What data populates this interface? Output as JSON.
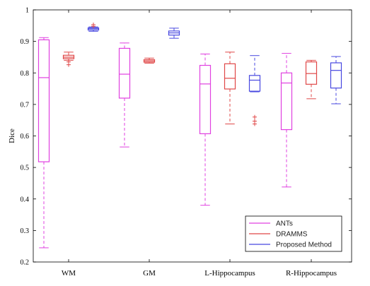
{
  "chart_data": {
    "type": "box",
    "ylabel": "Dice",
    "xlabel": "",
    "title": "",
    "ylim": [
      0.2,
      1.0
    ],
    "yticks": [
      0.2,
      0.3,
      0.4,
      0.5,
      0.6,
      0.7,
      0.8,
      0.9,
      1.0
    ],
    "ytick_labels": [
      "0.2",
      "0.3",
      "0.4",
      "0.5",
      "0.6",
      "0.7",
      "0.8",
      "0.9",
      "1"
    ],
    "categories": [
      "WM",
      "GM",
      "L-Hippocampus",
      "R-Hippocampus"
    ],
    "legend_position": "bottom-right",
    "series": [
      {
        "name": "ANTs",
        "color": "#e040e0",
        "boxes": [
          {
            "whisker_low": 0.245,
            "q1": 0.518,
            "median": 0.785,
            "q3": 0.905,
            "whisker_high": 0.912,
            "outliers": []
          },
          {
            "whisker_low": 0.565,
            "q1": 0.72,
            "median": 0.796,
            "q3": 0.878,
            "whisker_high": 0.895,
            "outliers": []
          },
          {
            "whisker_low": 0.38,
            "q1": 0.607,
            "median": 0.765,
            "q3": 0.824,
            "whisker_high": 0.86,
            "outliers": []
          },
          {
            "whisker_low": 0.438,
            "q1": 0.62,
            "median": 0.768,
            "q3": 0.8,
            "whisker_high": 0.862,
            "outliers": []
          }
        ]
      },
      {
        "name": "DRAMMS",
        "color": "#e04848",
        "boxes": [
          {
            "whisker_low": 0.84,
            "q1": 0.845,
            "median": 0.85,
            "q3": 0.856,
            "whisker_high": 0.866,
            "outliers": [
              0.826,
              0.835
            ]
          },
          {
            "whisker_low": 0.831,
            "q1": 0.834,
            "median": 0.838,
            "q3": 0.842,
            "whisker_high": 0.847,
            "outliers": []
          },
          {
            "whisker_low": 0.638,
            "q1": 0.749,
            "median": 0.783,
            "q3": 0.829,
            "whisker_high": 0.866,
            "outliers": []
          },
          {
            "whisker_low": 0.718,
            "q1": 0.764,
            "median": 0.798,
            "q3": 0.835,
            "whisker_high": 0.84,
            "outliers": []
          }
        ]
      },
      {
        "name": "Proposed Method",
        "color": "#4848e0",
        "boxes": [
          {
            "whisker_low": 0.932,
            "q1": 0.936,
            "median": 0.94,
            "q3": 0.943,
            "whisker_high": 0.946,
            "outliers": [
              0.948,
              0.953
            ]
          },
          {
            "whisker_low": 0.91,
            "q1": 0.92,
            "median": 0.927,
            "q3": 0.933,
            "whisker_high": 0.942,
            "outliers": []
          },
          {
            "whisker_low": 0.74,
            "q1": 0.742,
            "median": 0.777,
            "q3": 0.792,
            "whisker_high": 0.855,
            "outliers": [
              0.638,
              0.647,
              0.66
            ]
          },
          {
            "whisker_low": 0.702,
            "q1": 0.752,
            "median": 0.808,
            "q3": 0.832,
            "whisker_high": 0.852,
            "outliers": []
          }
        ]
      }
    ]
  }
}
